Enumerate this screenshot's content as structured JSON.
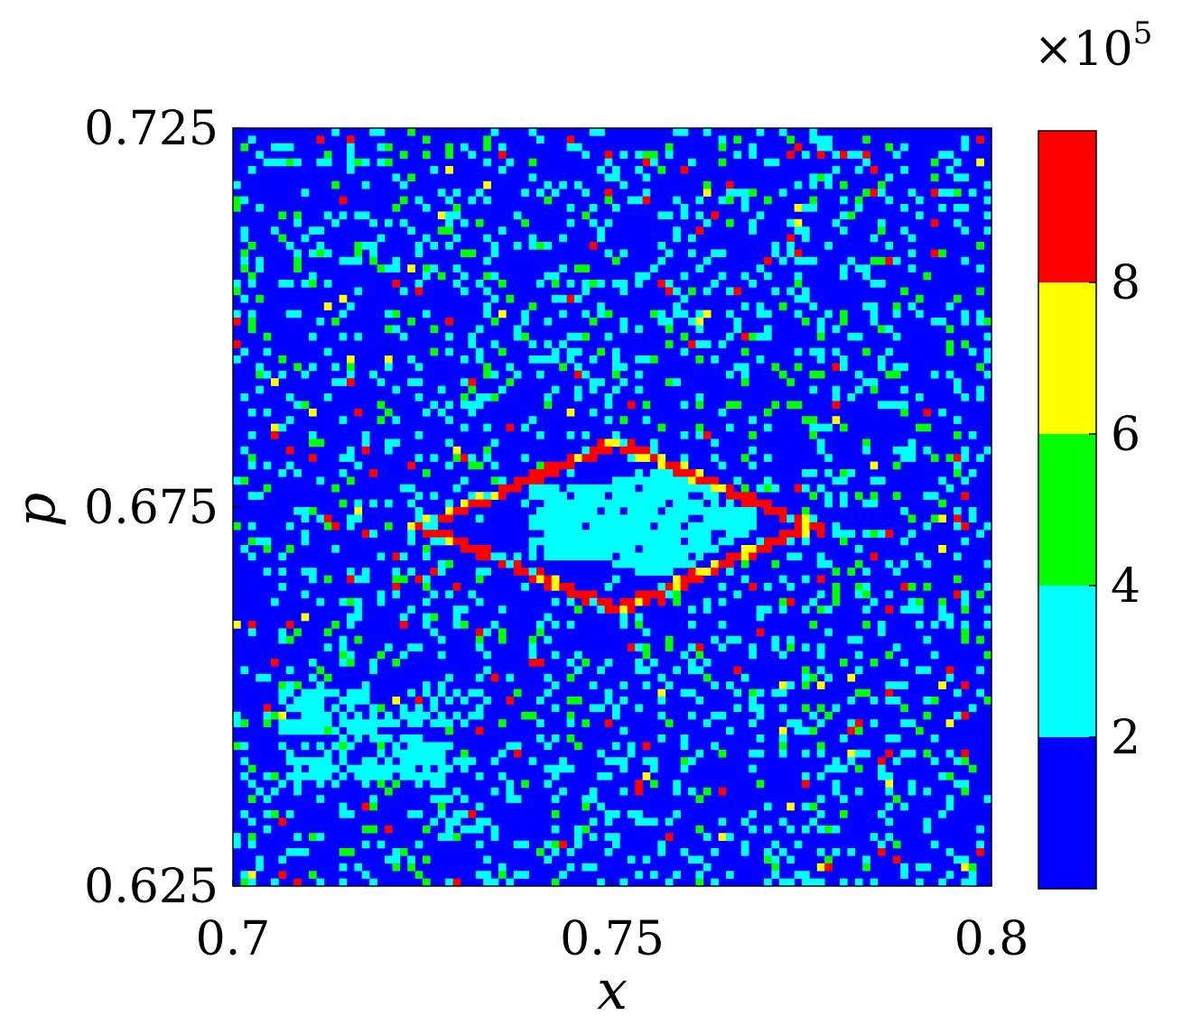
{
  "chart_data": {
    "type": "heatmap",
    "xlabel": "x",
    "ylabel": "p",
    "xlim": [
      0.7,
      0.8
    ],
    "ylim": [
      0.625,
      0.725
    ],
    "xticks": [
      0.7,
      0.75,
      0.8
    ],
    "xtick_labels": [
      "0.7",
      "0.75",
      "0.8"
    ],
    "yticks": [
      0.625,
      0.675,
      0.725
    ],
    "ytick_labels": [
      "0.625",
      "0.675",
      "0.725"
    ],
    "grid": false,
    "resolution": [
      100,
      100
    ],
    "colorbar": {
      "multiplier": "×10",
      "multiplier_exponent": "5",
      "range": [
        0,
        10
      ],
      "ticks": [
        2,
        4,
        6,
        8
      ],
      "tick_labels": [
        "2",
        "4",
        "6",
        "8"
      ],
      "levels": [
        {
          "from": 0,
          "to": 2,
          "color": "#0000ff"
        },
        {
          "from": 2,
          "to": 4,
          "color": "#00ffff"
        },
        {
          "from": 4,
          "to": 6,
          "color": "#00ff00"
        },
        {
          "from": 6,
          "to": 8,
          "color": "#ffff00"
        },
        {
          "from": 8,
          "to": 10,
          "color": "#ff0000"
        }
      ]
    },
    "structure": {
      "ring_center": [
        0.7505,
        0.6725
      ],
      "ring_half_width_x": 0.0275,
      "ring_half_height_p": 0.0125,
      "inner_core_center": [
        0.7525,
        0.673
      ],
      "background_level": 0,
      "noise_levels": [
        1,
        2,
        3,
        4
      ]
    }
  }
}
